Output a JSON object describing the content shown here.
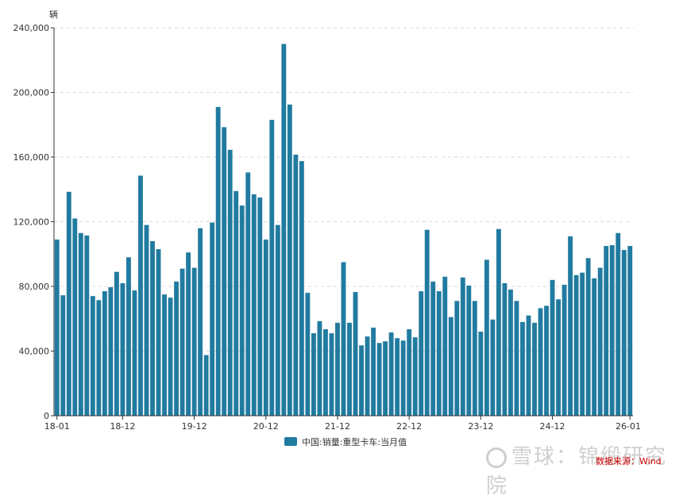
{
  "chart_data": {
    "type": "bar",
    "unit": "辆",
    "ylim": [
      0,
      240000
    ],
    "yticks": [
      "0",
      "40,000",
      "80,000",
      "120,000",
      "160,000",
      "200,000",
      "240,000"
    ],
    "ytick_values": [
      0,
      40000,
      80000,
      120000,
      160000,
      200000,
      240000
    ],
    "xtick_labels": [
      "18-01",
      "18-12",
      "19-12",
      "20-12",
      "21-12",
      "22-12",
      "23-12",
      "24-12",
      "26-01"
    ],
    "xtick_indices": [
      0,
      11,
      23,
      35,
      47,
      59,
      71,
      83,
      96
    ],
    "grid": true,
    "legend_position": "bottom-center",
    "color": "#217ba0",
    "series": [
      {
        "name": "中国:销量:重型卡车:当月值",
        "values": [
          109000,
          74500,
          138500,
          122000,
          113000,
          111500,
          74000,
          71500,
          77000,
          79500,
          89000,
          82000,
          98000,
          77500,
          148500,
          118000,
          108000,
          103000,
          75000,
          73000,
          83000,
          91000,
          101000,
          91500,
          116000,
          37500,
          119500,
          191000,
          178500,
          164500,
          139000,
          130000,
          150500,
          137000,
          135000,
          109000,
          183000,
          118000,
          230000,
          192500,
          161500,
          157500,
          76000,
          51000,
          58500,
          53500,
          51000,
          57500,
          95000,
          57500,
          76500,
          43500,
          49000,
          54500,
          45000,
          46000,
          51500,
          48000,
          46500,
          53500,
          48500,
          77000,
          115000,
          83000,
          77000,
          86000,
          61000,
          71000,
          85500,
          80500,
          71000,
          52000,
          96500,
          59500,
          115500,
          82000,
          78000,
          71000,
          58000,
          62000,
          57500,
          66500,
          68000,
          84000,
          72000,
          81000,
          111000,
          87000,
          88500,
          97500,
          85000,
          91500,
          105000,
          105500,
          113000,
          102500,
          105000
        ]
      }
    ]
  },
  "watermark": {
    "text": "雪球：锦缎研究院"
  },
  "source": {
    "text": "数据来源：Wind"
  }
}
